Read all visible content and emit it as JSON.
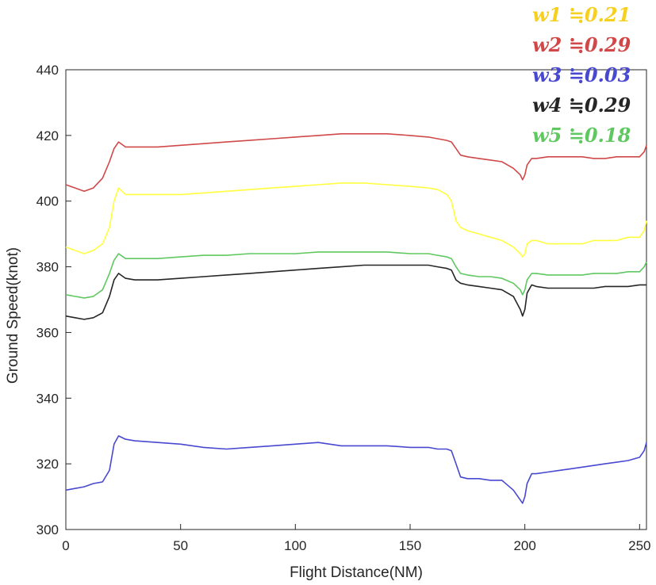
{
  "chart_data": {
    "type": "line",
    "title": "",
    "xlabel": "Flight Distance(NM)",
    "ylabel": "Ground Speed(knot)",
    "xlim": [
      0,
      253
    ],
    "ylim": [
      300,
      440
    ],
    "xticks": [
      "0",
      "50",
      "100",
      "150",
      "200",
      "250"
    ],
    "yticks": [
      "300",
      "320",
      "340",
      "360",
      "380",
      "400",
      "420",
      "440"
    ],
    "grid": false,
    "legend_position": "top-right",
    "series": [
      {
        "name": "w1 ≒0.21",
        "color": "#ffff40",
        "x": [
          0,
          4,
          8,
          12,
          16,
          19,
          21,
          23,
          26,
          30,
          40,
          50,
          60,
          70,
          80,
          90,
          100,
          110,
          120,
          130,
          140,
          150,
          158,
          162,
          166,
          168,
          170,
          172,
          175,
          180,
          185,
          190,
          195,
          198,
          199,
          200,
          201,
          203,
          205,
          210,
          215,
          220,
          225,
          230,
          235,
          240,
          245,
          250,
          252,
          253
        ],
        "y": [
          386,
          385,
          384,
          385,
          387,
          392,
          400,
          404,
          402,
          402,
          402,
          402,
          402.5,
          403,
          403.5,
          404,
          404.5,
          405,
          405.5,
          405.5,
          405,
          404.5,
          404,
          403.5,
          402,
          400,
          394,
          392,
          391,
          390,
          389,
          388,
          386,
          384,
          383,
          384,
          387,
          388,
          388,
          387,
          387,
          387,
          387,
          388,
          388,
          388,
          389,
          389,
          391,
          394
        ]
      },
      {
        "name": "w2 ≒0.29",
        "color": "#d04848",
        "x": [
          0,
          4,
          8,
          12,
          16,
          19,
          21,
          23,
          26,
          30,
          40,
          50,
          60,
          70,
          80,
          90,
          100,
          110,
          120,
          130,
          140,
          150,
          158,
          162,
          166,
          168,
          170,
          172,
          175,
          180,
          185,
          190,
          195,
          198,
          199,
          200,
          201,
          203,
          205,
          210,
          215,
          220,
          225,
          230,
          235,
          240,
          245,
          250,
          252,
          253
        ],
        "y": [
          405,
          404,
          403,
          404,
          407,
          412,
          416,
          418,
          416.5,
          416.5,
          416.5,
          417,
          417.5,
          418,
          418.5,
          419,
          419.5,
          420,
          420.5,
          420.5,
          420.5,
          420,
          419.5,
          419,
          418.5,
          418,
          416,
          414,
          413.5,
          413,
          412.5,
          412,
          410,
          408,
          406.5,
          408,
          411,
          413,
          413,
          413.5,
          413.5,
          413.5,
          413.5,
          413,
          413,
          413.5,
          413.5,
          413.5,
          415,
          417
        ]
      },
      {
        "name": "w3 ≒0.03",
        "color": "#4848d0",
        "x": [
          0,
          4,
          8,
          12,
          16,
          19,
          21,
          23,
          26,
          30,
          40,
          50,
          60,
          70,
          80,
          90,
          100,
          110,
          120,
          130,
          140,
          150,
          158,
          162,
          166,
          168,
          170,
          172,
          175,
          180,
          185,
          190,
          195,
          198,
          199,
          200,
          201,
          203,
          205,
          210,
          215,
          220,
          225,
          230,
          235,
          240,
          245,
          250,
          252,
          253
        ],
        "y": [
          312,
          312.5,
          313,
          314,
          314.5,
          318,
          326,
          328.5,
          327.5,
          327,
          326.5,
          326,
          325,
          324.5,
          325,
          325.5,
          326,
          326.5,
          325.5,
          325.5,
          325.5,
          325,
          325,
          324.5,
          324.5,
          324,
          320,
          316,
          315.5,
          315.5,
          315,
          315,
          312,
          309,
          308,
          310,
          314,
          317,
          317,
          317.5,
          318,
          318.5,
          319,
          319.5,
          320,
          320.5,
          321,
          322,
          324,
          326.5
        ]
      },
      {
        "name": "w4 ≒0.29",
        "color": "#262626",
        "x": [
          0,
          4,
          8,
          12,
          16,
          19,
          21,
          23,
          26,
          30,
          40,
          50,
          60,
          70,
          80,
          90,
          100,
          110,
          120,
          130,
          140,
          150,
          158,
          162,
          166,
          168,
          170,
          172,
          175,
          180,
          185,
          190,
          195,
          198,
          199,
          200,
          201,
          203,
          205,
          210,
          215,
          220,
          225,
          230,
          235,
          240,
          245,
          250,
          252,
          253
        ],
        "y": [
          365,
          364.5,
          364,
          364.5,
          366,
          371,
          376,
          378,
          376.5,
          376,
          376,
          376.5,
          377,
          377.5,
          378,
          378.5,
          379,
          379.5,
          380,
          380.5,
          380.5,
          380.5,
          380.5,
          380,
          379.5,
          379,
          376,
          375,
          374.5,
          374,
          373.5,
          373,
          371,
          367,
          365,
          367,
          372,
          374.5,
          374,
          373.5,
          373.5,
          373.5,
          373.5,
          373.5,
          374,
          374,
          374,
          374.5,
          374.5,
          374.5
        ]
      },
      {
        "name": "w5 ≒0.18",
        "color": "#60c860",
        "x": [
          0,
          4,
          8,
          12,
          16,
          19,
          21,
          23,
          26,
          30,
          40,
          50,
          60,
          70,
          80,
          90,
          100,
          110,
          120,
          130,
          140,
          150,
          158,
          162,
          166,
          168,
          170,
          172,
          175,
          180,
          185,
          190,
          195,
          198,
          199,
          200,
          201,
          203,
          205,
          210,
          215,
          220,
          225,
          230,
          235,
          240,
          245,
          250,
          252,
          253
        ],
        "y": [
          371.5,
          371,
          370.5,
          371,
          373,
          378,
          382,
          384,
          382.5,
          382.5,
          382.5,
          383,
          383.5,
          383.5,
          384,
          384,
          384,
          384.5,
          384.5,
          384.5,
          384.5,
          384,
          384,
          383.5,
          383,
          382.5,
          380,
          378,
          377.5,
          377,
          377,
          376.5,
          375,
          373,
          371.5,
          373,
          376,
          378,
          378,
          377.5,
          377.5,
          377.5,
          377.5,
          378,
          378,
          378,
          378.5,
          378.5,
          380,
          381.5
        ]
      }
    ]
  }
}
